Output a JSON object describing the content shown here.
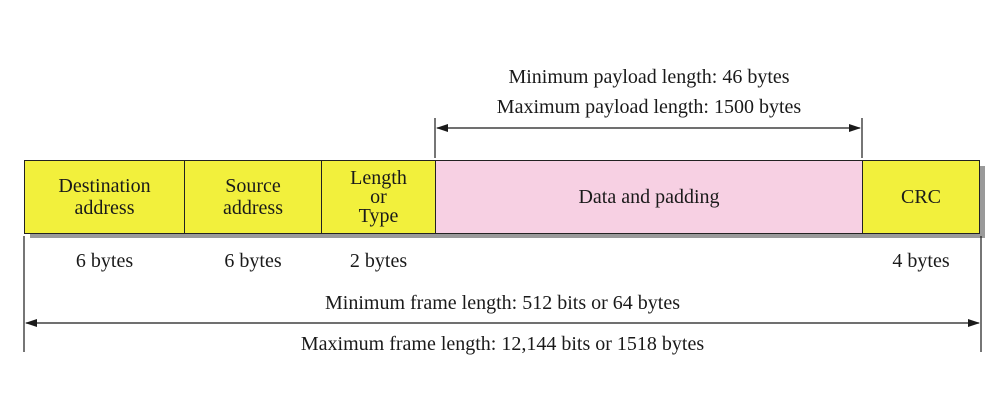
{
  "payload": {
    "min_label": "Minimum payload length: 46 bytes",
    "max_label": "Maximum payload length: 1500 bytes"
  },
  "fields": [
    {
      "line1": "Destination",
      "line2": "address",
      "line3": "",
      "size": "6 bytes",
      "color": "#f2f03c"
    },
    {
      "line1": "Source",
      "line2": "address",
      "line3": "",
      "size": "6 bytes",
      "color": "#f2f03c"
    },
    {
      "line1": "Length",
      "line2": "or",
      "line3": "Type",
      "size": "2 bytes",
      "color": "#f2f03c"
    },
    {
      "line1": "Data and padding",
      "line2": "",
      "line3": "",
      "size": "",
      "color": "#f7d0e3"
    },
    {
      "line1": "CRC",
      "line2": "",
      "line3": "",
      "size": "4 bytes",
      "color": "#f2f03c"
    }
  ],
  "frame": {
    "min_label": "Minimum frame length: 512 bits or 64 bytes",
    "max_label": "Maximum frame length: 12,144 bits or 1518 bytes"
  }
}
